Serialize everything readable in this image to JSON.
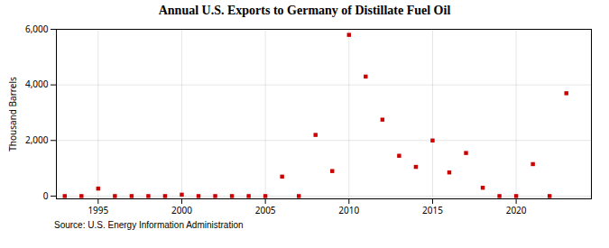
{
  "chart_data": {
    "type": "scatter",
    "title": "Annual U.S. Exports to Germany of Distillate Fuel Oil",
    "ylabel": "Thousand Barrels",
    "source": "Source: U.S. Energy Information Administration",
    "x": [
      1993,
      1994,
      1995,
      1996,
      1997,
      1998,
      1999,
      2000,
      2001,
      2002,
      2003,
      2004,
      2005,
      2006,
      2007,
      2008,
      2009,
      2010,
      2011,
      2012,
      2013,
      2014,
      2015,
      2016,
      2017,
      2018,
      2019,
      2020,
      2021,
      2022,
      2023
    ],
    "values": [
      0,
      0,
      270,
      0,
      0,
      0,
      0,
      50,
      0,
      0,
      0,
      0,
      0,
      700,
      0,
      2200,
      900,
      5800,
      4300,
      2750,
      1450,
      1050,
      2000,
      850,
      1550,
      300,
      0,
      0,
      1150,
      0,
      3700
    ],
    "color": "#cc0000",
    "marker": "square",
    "xlim": [
      1992.5,
      2024.5
    ],
    "xticks": [
      1995,
      2000,
      2005,
      2010,
      2015,
      2020
    ],
    "ylim": [
      -100,
      6000
    ],
    "yticks": [
      0,
      {
        "value": 2000,
        "label": "2,000"
      },
      {
        "value": 4000,
        "label": "4,000"
      },
      {
        "value": 6000,
        "label": "6,000"
      }
    ],
    "grid": true
  }
}
